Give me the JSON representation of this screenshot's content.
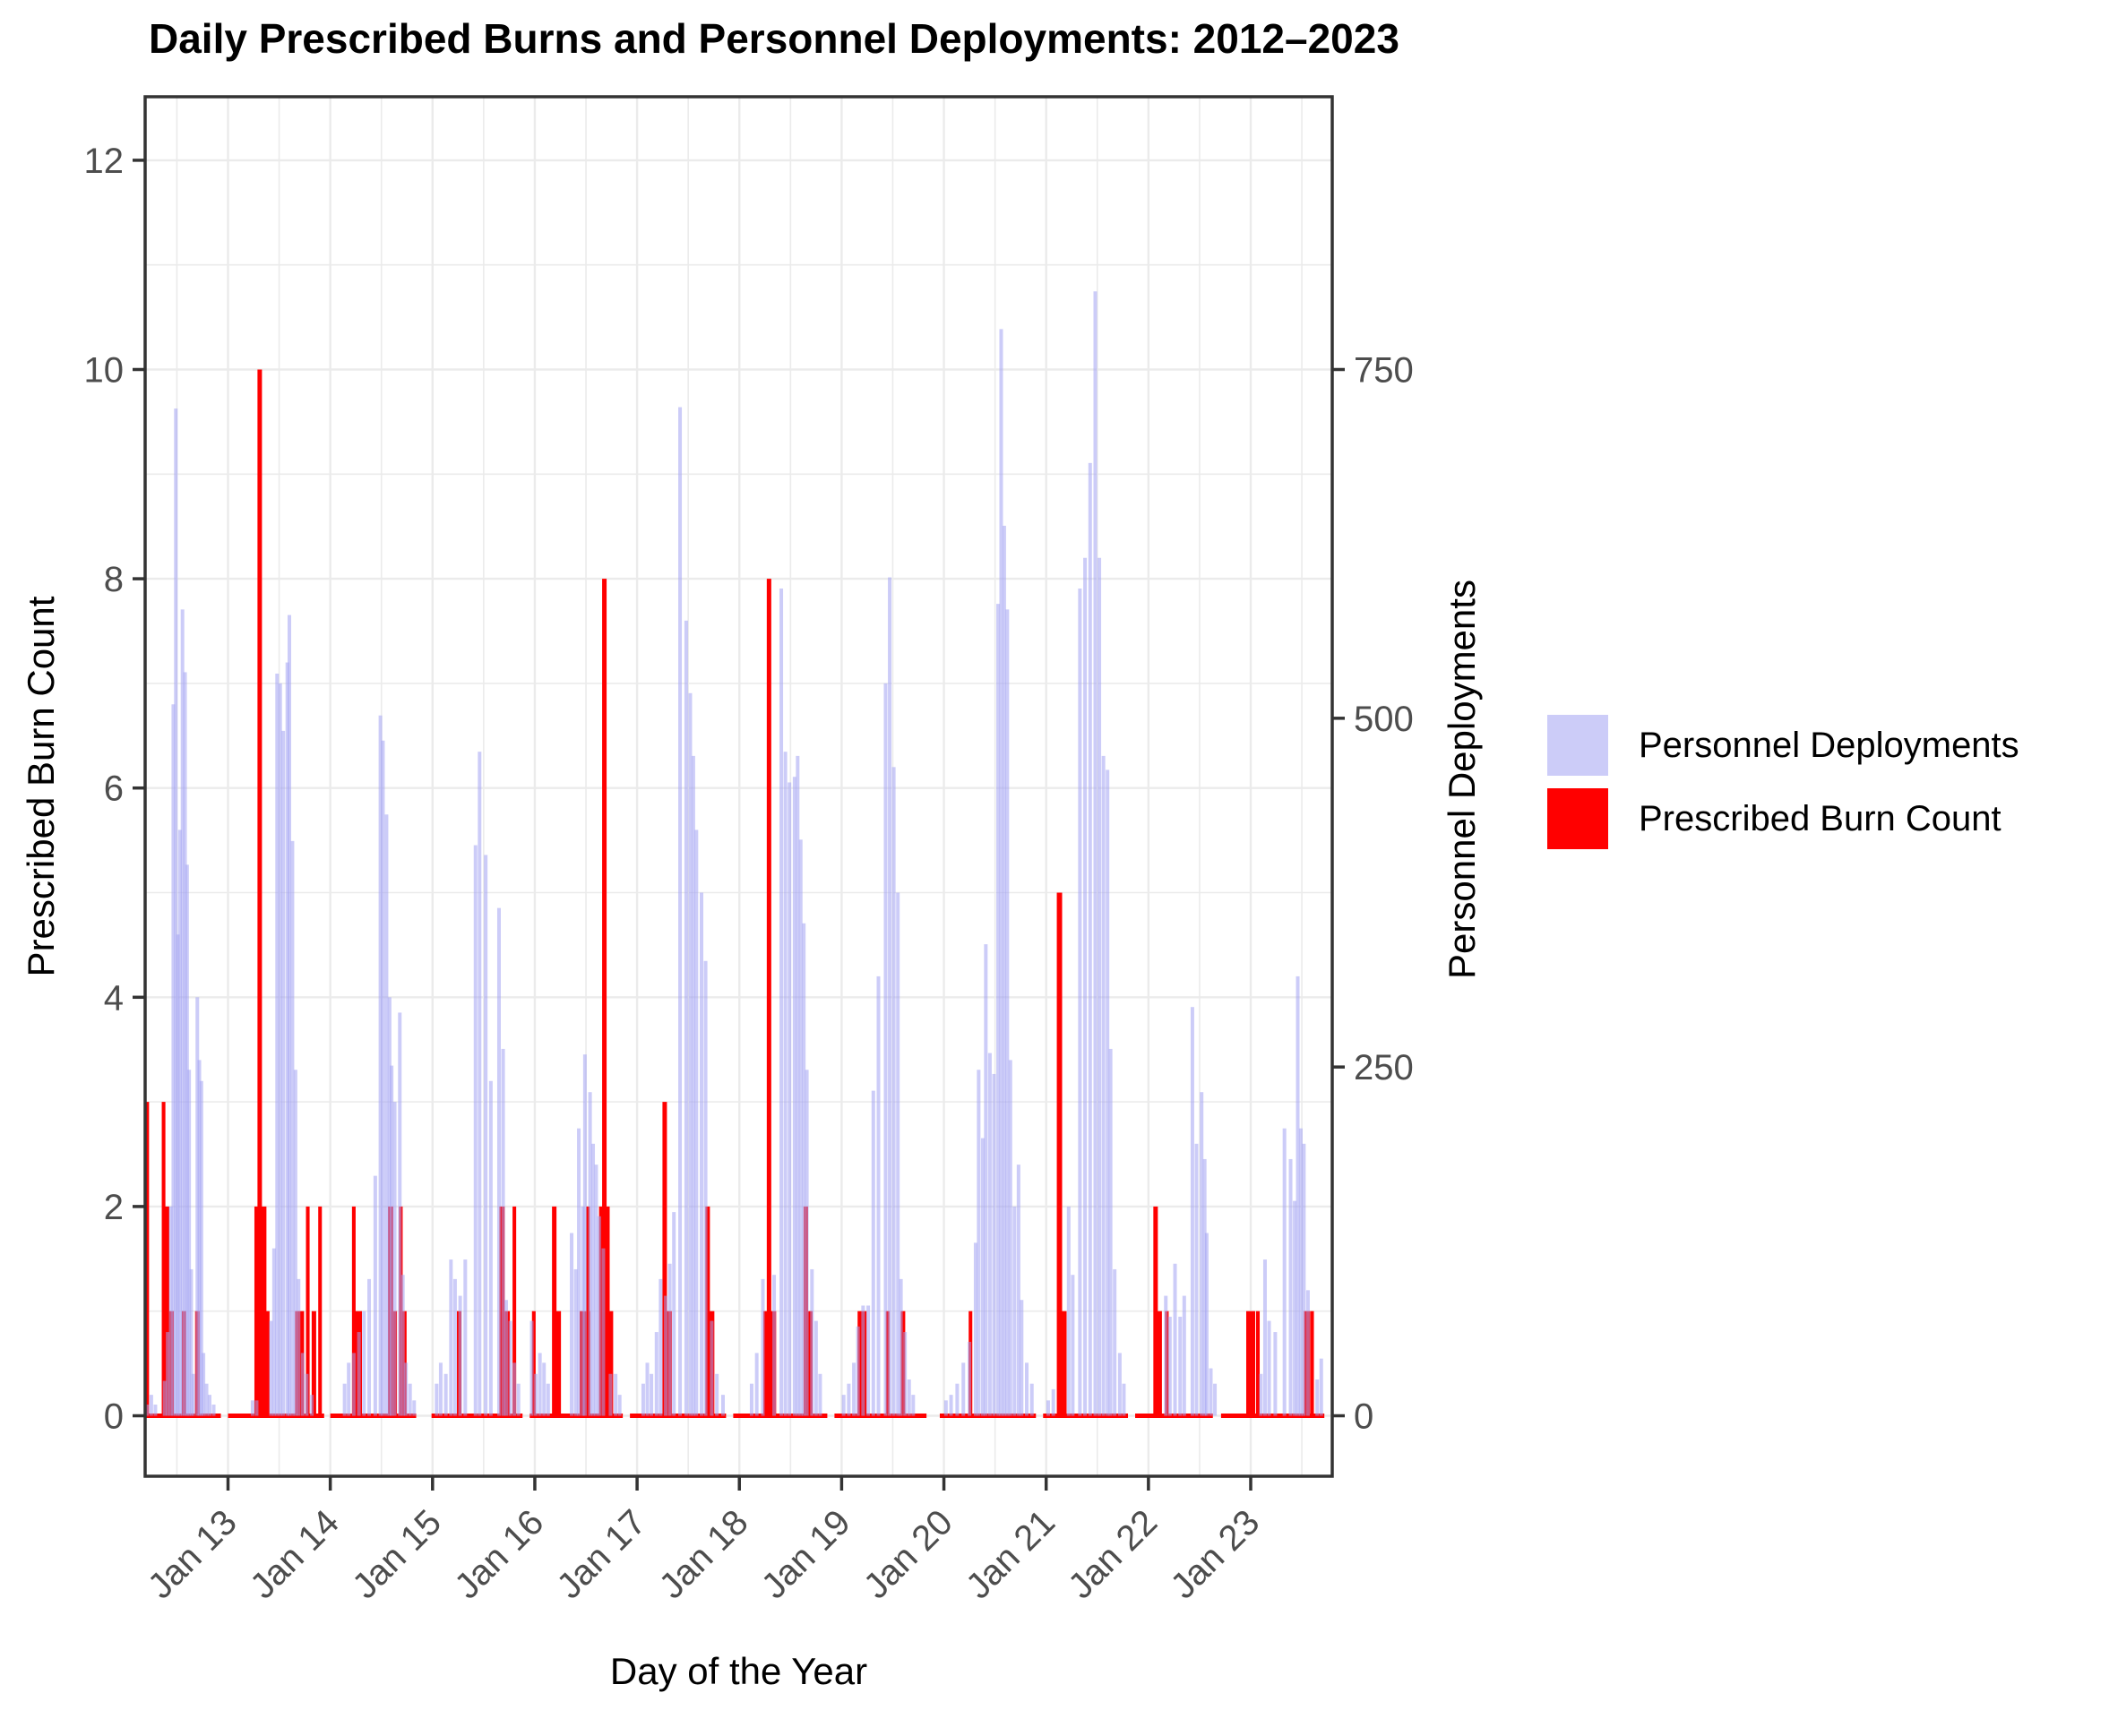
{
  "chart_data": {
    "type": "bar",
    "title": "Daily Prescribed Burns and Personnel Deployments: 2012–2023",
    "xlabel": "Day of the Year",
    "ylabel_left": "Prescribed Burn Count",
    "ylabel_right": "Personnel Deployments",
    "ylim_left": [
      0,
      12
    ],
    "yticks_left": [
      0,
      2,
      4,
      6,
      8,
      10,
      12
    ],
    "ylim_right": [
      0,
      900
    ],
    "yticks_right": [
      0,
      250,
      500,
      750
    ],
    "x_ticks": [
      {
        "year": 2013,
        "label": "Jan 13"
      },
      {
        "year": 2014,
        "label": "Jan 14"
      },
      {
        "year": 2015,
        "label": "Jan 15"
      },
      {
        "year": 2016,
        "label": "Jan 16"
      },
      {
        "year": 2017,
        "label": "Jan 17"
      },
      {
        "year": 2018,
        "label": "Jan 18"
      },
      {
        "year": 2019,
        "label": "Jan 19"
      },
      {
        "year": 2020,
        "label": "Jan 20"
      },
      {
        "year": 2021,
        "label": "Jan 21"
      },
      {
        "year": 2022,
        "label": "Jan 22"
      },
      {
        "year": 2023,
        "label": "Jan 23"
      }
    ],
    "grid": true,
    "legend_position": "right",
    "legend": [
      {
        "label": "Personnel Deployments",
        "color": "#CCCCF8"
      },
      {
        "label": "Prescribed Burn Count",
        "color": "#FF0000"
      }
    ],
    "colors": {
      "deployments_fill_base": "#A2A2F2",
      "deployments_alpha": 0.55,
      "burns_red": "#FF0000",
      "gridline": "#EBEBEB",
      "panel_border": "#333333",
      "tick_text": "#4D4D4D",
      "panel_bg": "#FFFFFF"
    },
    "series": [
      {
        "name": "Personnel Deployments",
        "axis": "right",
        "points": [
          [
            2012.21,
            8
          ],
          [
            2012.25,
            15
          ],
          [
            2012.29,
            8
          ],
          [
            2012.38,
            25
          ],
          [
            2012.41,
            60
          ],
          [
            2012.44,
            150
          ],
          [
            2012.465,
            510
          ],
          [
            2012.49,
            722
          ],
          [
            2012.51,
            345
          ],
          [
            2012.53,
            420
          ],
          [
            2012.555,
            578
          ],
          [
            2012.58,
            533
          ],
          [
            2012.6,
            395
          ],
          [
            2012.62,
            248
          ],
          [
            2012.64,
            105
          ],
          [
            2012.66,
            30
          ],
          [
            2012.7,
            300
          ],
          [
            2012.72,
            255
          ],
          [
            2012.74,
            240
          ],
          [
            2012.76,
            45
          ],
          [
            2012.79,
            23
          ],
          [
            2012.82,
            15
          ],
          [
            2012.86,
            8
          ],
          [
            2013.24,
            11
          ],
          [
            2013.28,
            11
          ],
          [
            2013.42,
            68
          ],
          [
            2013.45,
            120
          ],
          [
            2013.48,
            532
          ],
          [
            2013.51,
            525
          ],
          [
            2013.54,
            491
          ],
          [
            2013.58,
            540
          ],
          [
            2013.6,
            574
          ],
          [
            2013.63,
            412
          ],
          [
            2013.66,
            248
          ],
          [
            2013.69,
            98
          ],
          [
            2013.73,
            45
          ],
          [
            2013.77,
            30
          ],
          [
            2013.82,
            15
          ],
          [
            2014.14,
            23
          ],
          [
            2014.18,
            38
          ],
          [
            2014.23,
            45
          ],
          [
            2014.28,
            60
          ],
          [
            2014.33,
            75
          ],
          [
            2014.38,
            98
          ],
          [
            2014.44,
            172
          ],
          [
            2014.49,
            502
          ],
          [
            2014.515,
            484
          ],
          [
            2014.55,
            431
          ],
          [
            2014.58,
            300
          ],
          [
            2014.6,
            251
          ],
          [
            2014.63,
            225
          ],
          [
            2014.68,
            289
          ],
          [
            2014.71,
            101
          ],
          [
            2014.74,
            38
          ],
          [
            2014.78,
            23
          ],
          [
            2014.82,
            11
          ],
          [
            2015.04,
            23
          ],
          [
            2015.08,
            38
          ],
          [
            2015.13,
            30
          ],
          [
            2015.18,
            112
          ],
          [
            2015.22,
            98
          ],
          [
            2015.27,
            86
          ],
          [
            2015.32,
            112
          ],
          [
            2015.42,
            409
          ],
          [
            2015.46,
            476
          ],
          [
            2015.52,
            402
          ],
          [
            2015.57,
            240
          ],
          [
            2015.65,
            364
          ],
          [
            2015.69,
            263
          ],
          [
            2015.72,
            83
          ],
          [
            2015.76,
            68
          ],
          [
            2015.8,
            38
          ],
          [
            2015.84,
            23
          ],
          [
            2015.97,
            68
          ],
          [
            2016.01,
            30
          ],
          [
            2016.05,
            45
          ],
          [
            2016.09,
            38
          ],
          [
            2016.13,
            23
          ],
          [
            2016.36,
            131
          ],
          [
            2016.4,
            105
          ],
          [
            2016.43,
            206
          ],
          [
            2016.47,
            150
          ],
          [
            2016.49,
            259
          ],
          [
            2016.54,
            232
          ],
          [
            2016.57,
            195
          ],
          [
            2016.6,
            180
          ],
          [
            2016.63,
            143
          ],
          [
            2016.67,
            120
          ],
          [
            2016.74,
            30
          ],
          [
            2016.79,
            30
          ],
          [
            2016.83,
            15
          ],
          [
            2017.06,
            23
          ],
          [
            2017.1,
            38
          ],
          [
            2017.14,
            30
          ],
          [
            2017.19,
            60
          ],
          [
            2017.23,
            98
          ],
          [
            2017.28,
            86
          ],
          [
            2017.32,
            109
          ],
          [
            2017.36,
            146
          ],
          [
            2017.42,
            723
          ],
          [
            2017.48,
            570
          ],
          [
            2017.52,
            518
          ],
          [
            2017.55,
            473
          ],
          [
            2017.58,
            420
          ],
          [
            2017.63,
            375
          ],
          [
            2017.67,
            326
          ],
          [
            2017.73,
            68
          ],
          [
            2017.78,
            30
          ],
          [
            2017.84,
            15
          ],
          [
            2018.12,
            23
          ],
          [
            2018.17,
            45
          ],
          [
            2018.23,
            98
          ],
          [
            2018.34,
            101
          ],
          [
            2018.41,
            593
          ],
          [
            2018.45,
            476
          ],
          [
            2018.49,
            454
          ],
          [
            2018.54,
            458
          ],
          [
            2018.57,
            473
          ],
          [
            2018.6,
            413
          ],
          [
            2018.63,
            353
          ],
          [
            2018.66,
            248
          ],
          [
            2018.71,
            105
          ],
          [
            2018.75,
            68
          ],
          [
            2018.79,
            30
          ],
          [
            2019.02,
            15
          ],
          [
            2019.07,
            23
          ],
          [
            2019.12,
            38
          ],
          [
            2019.16,
            64
          ],
          [
            2019.21,
            79
          ],
          [
            2019.26,
            79
          ],
          [
            2019.31,
            233
          ],
          [
            2019.36,
            315
          ],
          [
            2019.43,
            525
          ],
          [
            2019.47,
            601
          ],
          [
            2019.51,
            465
          ],
          [
            2019.55,
            375
          ],
          [
            2019.58,
            98
          ],
          [
            2019.62,
            60
          ],
          [
            2019.66,
            26
          ],
          [
            2019.7,
            15
          ],
          [
            2020.02,
            11
          ],
          [
            2020.07,
            15
          ],
          [
            2020.13,
            23
          ],
          [
            2020.19,
            38
          ],
          [
            2020.25,
            53
          ],
          [
            2020.31,
            124
          ],
          [
            2020.34,
            248
          ],
          [
            2020.38,
            199
          ],
          [
            2020.41,
            338
          ],
          [
            2020.45,
            260
          ],
          [
            2020.49,
            245
          ],
          [
            2020.53,
            582
          ],
          [
            2020.56,
            779
          ],
          [
            2020.59,
            638
          ],
          [
            2020.62,
            578
          ],
          [
            2020.65,
            255
          ],
          [
            2020.69,
            150
          ],
          [
            2020.73,
            180
          ],
          [
            2020.76,
            83
          ],
          [
            2020.81,
            38
          ],
          [
            2020.86,
            23
          ],
          [
            2021.02,
            11
          ],
          [
            2021.07,
            19
          ],
          [
            2021.22,
            150
          ],
          [
            2021.26,
            101
          ],
          [
            2021.33,
            593
          ],
          [
            2021.38,
            615
          ],
          [
            2021.43,
            683
          ],
          [
            2021.48,
            806
          ],
          [
            2021.52,
            615
          ],
          [
            2021.56,
            473
          ],
          [
            2021.6,
            463
          ],
          [
            2021.63,
            263
          ],
          [
            2021.67,
            105
          ],
          [
            2021.72,
            45
          ],
          [
            2021.76,
            23
          ],
          [
            2022.17,
            86
          ],
          [
            2022.21,
            71
          ],
          [
            2022.26,
            109
          ],
          [
            2022.31,
            71
          ],
          [
            2022.35,
            86
          ],
          [
            2022.43,
            293
          ],
          [
            2022.47,
            195
          ],
          [
            2022.52,
            232
          ],
          [
            2022.55,
            184
          ],
          [
            2022.57,
            131
          ],
          [
            2022.61,
            34
          ],
          [
            2022.65,
            23
          ],
          [
            2023.1,
            30
          ],
          [
            2023.14,
            112
          ],
          [
            2023.18,
            68
          ],
          [
            2023.24,
            60
          ],
          [
            2023.33,
            206
          ],
          [
            2023.39,
            184
          ],
          [
            2023.43,
            154
          ],
          [
            2023.46,
            315
          ],
          [
            2023.49,
            206
          ],
          [
            2023.52,
            195
          ],
          [
            2023.56,
            90
          ],
          [
            2023.65,
            26
          ],
          [
            2023.69,
            41
          ]
        ]
      },
      {
        "name": "Prescribed Burn Count",
        "axis": "left",
        "bars": [
          [
            2012.21,
            3,
            13
          ],
          [
            2012.37,
            3,
            13
          ],
          [
            2012.4,
            2,
            19
          ],
          [
            2012.43,
            1,
            29
          ],
          [
            2012.57,
            1,
            16
          ],
          [
            2012.7,
            1,
            16
          ],
          [
            2013.28,
            2,
            16
          ],
          [
            2013.31,
            10,
            16
          ],
          [
            2013.34,
            2,
            26
          ],
          [
            2013.38,
            1,
            19
          ],
          [
            2013.7,
            1,
            32
          ],
          [
            2013.78,
            2,
            13
          ],
          [
            2013.84,
            1,
            16
          ],
          [
            2013.9,
            2,
            13
          ],
          [
            2014.23,
            2,
            13
          ],
          [
            2014.27,
            1,
            29
          ],
          [
            2014.59,
            2,
            19
          ],
          [
            2014.63,
            1,
            16
          ],
          [
            2014.69,
            2,
            13
          ],
          [
            2014.72,
            1,
            19
          ],
          [
            2015.26,
            1,
            16
          ],
          [
            2015.68,
            2,
            19
          ],
          [
            2015.73,
            1,
            19
          ],
          [
            2015.8,
            2,
            13
          ],
          [
            2015.99,
            1,
            13
          ],
          [
            2016.19,
            2,
            16
          ],
          [
            2016.22,
            1,
            26
          ],
          [
            2016.49,
            1,
            38
          ],
          [
            2016.52,
            2,
            13
          ],
          [
            2016.65,
            2,
            16
          ],
          [
            2016.68,
            8,
            16
          ],
          [
            2016.71,
            2,
            16
          ],
          [
            2016.74,
            1,
            19
          ],
          [
            2017.27,
            3,
            16
          ],
          [
            2017.3,
            1,
            29
          ],
          [
            2017.69,
            2,
            16
          ],
          [
            2017.72,
            1,
            26
          ],
          [
            2018.26,
            1,
            19
          ],
          [
            2018.29,
            8,
            16
          ],
          [
            2018.32,
            1,
            29
          ],
          [
            2018.65,
            2,
            16
          ],
          [
            2018.68,
            1,
            26
          ],
          [
            2019.2,
            1,
            32
          ],
          [
            2019.45,
            1,
            13
          ],
          [
            2019.6,
            1,
            16
          ],
          [
            2020.26,
            1,
            13
          ],
          [
            2021.13,
            5,
            19
          ],
          [
            2021.16,
            1,
            29
          ],
          [
            2022.07,
            2,
            16
          ],
          [
            2022.11,
            1,
            16
          ],
          [
            2022.18,
            1,
            13
          ],
          [
            2023.0,
            1,
            32
          ],
          [
            2023.07,
            1,
            13
          ],
          [
            2023.55,
            1,
            22
          ],
          [
            2023.6,
            1,
            13
          ]
        ],
        "baseline_segments": [
          [
            2012.2,
            2012.93
          ],
          [
            2013.0,
            2013.94
          ],
          [
            2014.0,
            2014.84
          ],
          [
            2014.99,
            2015.88
          ],
          [
            2015.95,
            2016.86
          ],
          [
            2016.93,
            2017.87
          ],
          [
            2017.94,
            2018.86
          ],
          [
            2018.93,
            2019.83
          ],
          [
            2019.96,
            2020.9
          ],
          [
            2020.97,
            2021.8
          ],
          [
            2021.87,
            2022.63
          ],
          [
            2022.71,
            2023.72
          ]
        ]
      }
    ]
  }
}
